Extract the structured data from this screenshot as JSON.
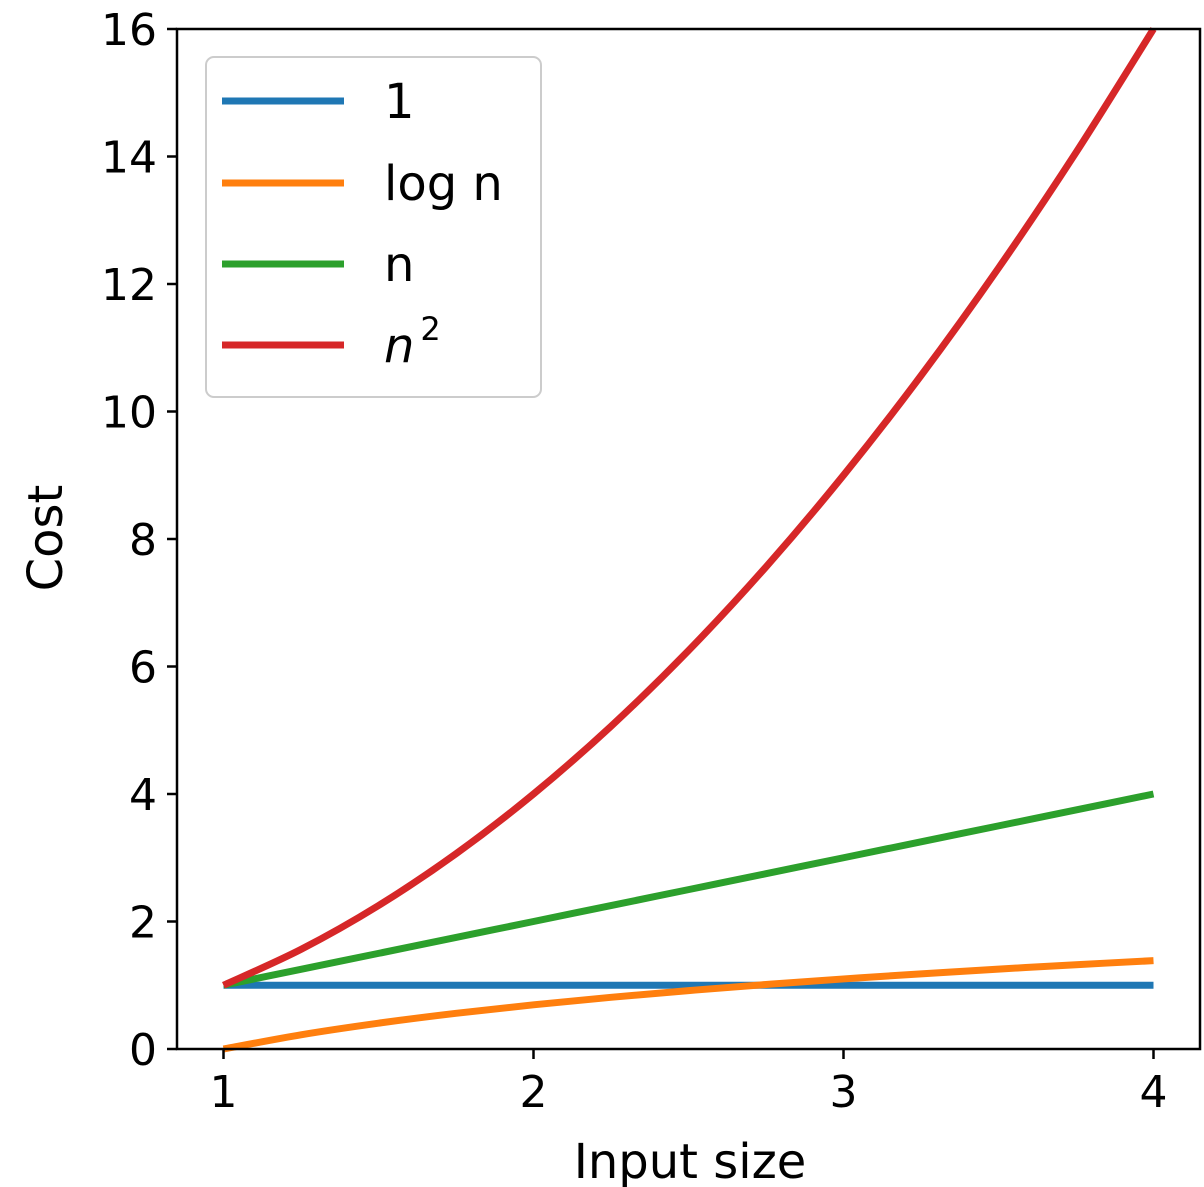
{
  "chart_data": {
    "type": "line",
    "xlabel": "Input size",
    "ylabel": "Cost",
    "xlim": [
      0.85,
      4.15
    ],
    "ylim": [
      0,
      16
    ],
    "xticks": [
      1,
      2,
      3,
      4
    ],
    "xtick_labels": [
      "1",
      "2",
      "3",
      "4"
    ],
    "yticks": [
      0,
      2,
      4,
      6,
      8,
      10,
      12,
      14,
      16
    ],
    "ytick_labels": [
      "0",
      "2",
      "4",
      "6",
      "8",
      "10",
      "12",
      "14",
      "16"
    ],
    "grid": false,
    "legend_position": "top-left",
    "x": [
      1.0,
      1.25,
      1.5,
      1.75,
      2.0,
      2.25,
      2.5,
      2.75,
      3.0,
      3.25,
      3.5,
      3.75,
      4.0
    ],
    "series": [
      {
        "name": "1",
        "color": "#1f77b4",
        "values": [
          1,
          1,
          1,
          1,
          1,
          1,
          1,
          1,
          1,
          1,
          1,
          1,
          1
        ]
      },
      {
        "name": "log n",
        "color": "#ff7f0e",
        "values": [
          0.0,
          0.223,
          0.405,
          0.56,
          0.693,
          0.811,
          0.916,
          1.012,
          1.099,
          1.179,
          1.253,
          1.322,
          1.386
        ]
      },
      {
        "name": "n",
        "color": "#2ca02c",
        "values": [
          1.0,
          1.25,
          1.5,
          1.75,
          2.0,
          2.25,
          2.5,
          2.75,
          3.0,
          3.25,
          3.5,
          3.75,
          4.0
        ]
      },
      {
        "name": "n",
        "superscript": "2",
        "color": "#d62728",
        "values": [
          1.0,
          1.5625,
          2.25,
          3.0625,
          4.0,
          5.0625,
          6.25,
          7.5625,
          9.0,
          10.5625,
          12.25,
          14.0625,
          16.0
        ]
      }
    ]
  }
}
